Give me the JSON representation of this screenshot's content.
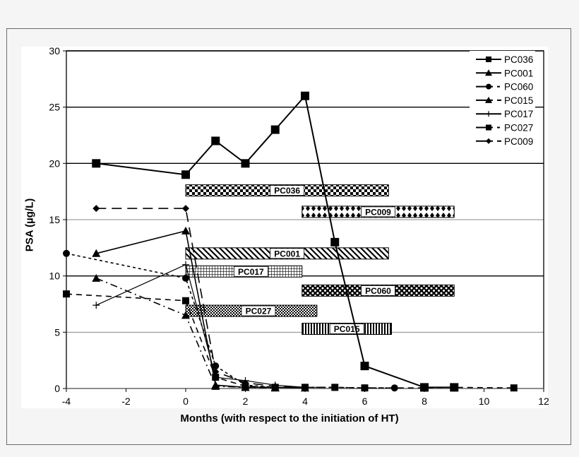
{
  "chart_data": {
    "type": "line",
    "title": "",
    "xlabel": "Months (with respect to the initiation of HT)",
    "ylabel": "PSA (µg/L)",
    "xlim": [
      -4,
      12
    ],
    "ylim": [
      0,
      30
    ],
    "x_ticks": [
      -4,
      -2,
      0,
      2,
      4,
      6,
      8,
      10,
      12
    ],
    "y_ticks": [
      0,
      5,
      10,
      15,
      20,
      25,
      30
    ],
    "grid": "horizontal",
    "legend_position": "top-right",
    "series": [
      {
        "name": "PC036",
        "marker": "square",
        "line": "solid",
        "width": 2,
        "points": [
          [
            -3,
            20
          ],
          [
            0,
            19
          ],
          [
            1,
            22
          ],
          [
            2,
            20
          ],
          [
            3,
            23
          ],
          [
            4,
            26
          ],
          [
            5,
            13
          ],
          [
            6,
            2
          ],
          [
            8,
            0.1
          ],
          [
            9,
            0.1
          ]
        ]
      },
      {
        "name": "PC001",
        "marker": "triangle",
        "line": "solid",
        "width": 1.6,
        "points": [
          [
            -3,
            12
          ],
          [
            0,
            14
          ],
          [
            1,
            0.3
          ],
          [
            2,
            0.1
          ],
          [
            3,
            0.1
          ],
          [
            4,
            0.05
          ]
        ]
      },
      {
        "name": "PC060",
        "marker": "circle",
        "line": "short-dash",
        "width": 1.6,
        "points": [
          [
            -4,
            12
          ],
          [
            0,
            9.8
          ],
          [
            1,
            2
          ],
          [
            2,
            0.3
          ],
          [
            3,
            0.1
          ],
          [
            4,
            0.1
          ],
          [
            5,
            0.1
          ],
          [
            6,
            0.05
          ],
          [
            7,
            0.05
          ]
        ]
      },
      {
        "name": "PC015",
        "marker": "triangle",
        "line": "dash-dot",
        "width": 1.6,
        "points": [
          [
            -3,
            9.8
          ],
          [
            0,
            6.5
          ],
          [
            1,
            0.2
          ],
          [
            2,
            0.1
          ],
          [
            3,
            0.05
          ]
        ]
      },
      {
        "name": "PC017",
        "marker": "plus",
        "line": "solid",
        "width": 1.2,
        "points": [
          [
            -3,
            7.4
          ],
          [
            0,
            11
          ],
          [
            1,
            1
          ],
          [
            2,
            0.7
          ],
          [
            3,
            0.3
          ],
          [
            4,
            0.1
          ]
        ]
      },
      {
        "name": "PC027",
        "marker": "square",
        "line": "dash",
        "width": 1.6,
        "points": [
          [
            -4,
            8.4
          ],
          [
            0,
            7.8
          ],
          [
            1,
            1
          ],
          [
            2,
            0.2
          ],
          [
            3,
            0.1
          ],
          [
            4,
            0.1
          ],
          [
            5,
            0.1
          ],
          [
            6,
            0.05
          ],
          [
            8,
            0.05
          ],
          [
            9,
            0.1
          ],
          [
            11,
            0.05
          ]
        ]
      },
      {
        "name": "PC009",
        "marker": "diamond",
        "line": "long-dash",
        "width": 1.6,
        "points": [
          [
            -3,
            16
          ],
          [
            0,
            16
          ],
          [
            1,
            1.5
          ],
          [
            2,
            0.5
          ],
          [
            3,
            0.2
          ],
          [
            4,
            0.1
          ],
          [
            5,
            0.1
          ]
        ]
      }
    ],
    "bars": [
      {
        "label": "PC036",
        "x0": 0,
        "x1": 6.8,
        "y": 17.6,
        "pattern": "checker"
      },
      {
        "label": "PC009",
        "x0": 3.9,
        "x1": 9.0,
        "y": 15.7,
        "pattern": "diamonds"
      },
      {
        "label": "PC001",
        "x0": 0,
        "x1": 6.8,
        "y": 12.0,
        "pattern": "diagonal"
      },
      {
        "label": "PC017",
        "x0": 0,
        "x1": 3.9,
        "y": 10.4,
        "pattern": "grid"
      },
      {
        "label": "PC060",
        "x0": 3.9,
        "x1": 9.0,
        "y": 8.7,
        "pattern": "dots"
      },
      {
        "label": "PC027",
        "x0": 0,
        "x1": 4.4,
        "y": 6.9,
        "pattern": "fine-checker"
      },
      {
        "label": "PC015",
        "x0": 3.9,
        "x1": 6.9,
        "y": 5.3,
        "pattern": "vertical"
      }
    ]
  }
}
